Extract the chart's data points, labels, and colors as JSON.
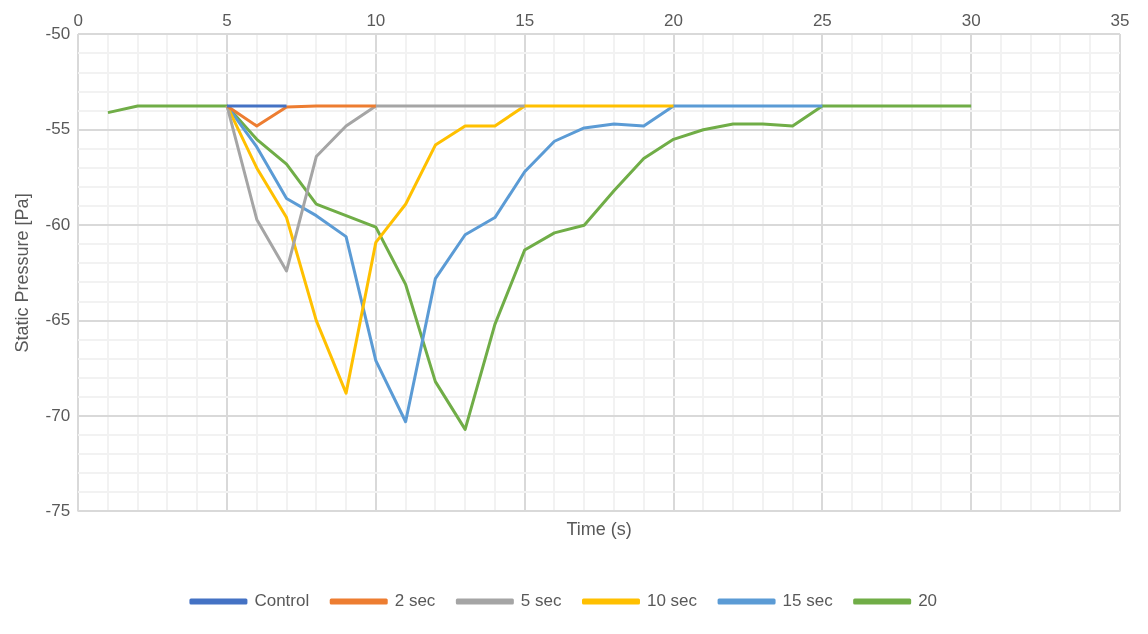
{
  "chart_data": {
    "type": "line",
    "xlabel": "Time (s)",
    "ylabel": "Static Pressure [Pa]",
    "x": [
      1,
      2,
      3,
      4,
      5,
      6,
      7,
      8,
      9,
      10,
      11,
      12,
      13,
      14,
      15,
      16,
      17,
      18,
      19,
      20,
      21,
      22,
      23,
      24,
      25,
      26,
      27,
      28,
      29,
      30
    ],
    "series": [
      {
        "name": "Control",
        "color": "#4472c4",
        "values": [
          null,
          null,
          null,
          null,
          -53.75,
          -53.75,
          -53.75,
          null,
          null,
          null,
          null,
          null,
          null,
          null,
          null,
          null,
          null,
          null,
          null,
          null,
          null,
          null,
          null,
          null,
          null,
          null,
          null,
          null,
          null,
          null
        ]
      },
      {
        "name": "2 sec",
        "color": "#ed7d31",
        "values": [
          null,
          null,
          null,
          null,
          -53.75,
          -54.8,
          -53.8,
          -53.75,
          -53.75,
          -53.75,
          null,
          null,
          null,
          null,
          null,
          null,
          null,
          null,
          null,
          null,
          null,
          null,
          null,
          null,
          null,
          null,
          null,
          null,
          null,
          null
        ]
      },
      {
        "name": "5 sec",
        "color": "#a5a5a5",
        "values": [
          null,
          null,
          null,
          null,
          -53.75,
          -59.7,
          -62.4,
          -56.4,
          -54.8,
          -53.75,
          -53.75,
          -53.75,
          -53.75,
          -53.75,
          -53.75,
          null,
          null,
          null,
          null,
          null,
          null,
          null,
          null,
          null,
          null,
          null,
          null,
          null,
          null,
          null
        ]
      },
      {
        "name": "10 sec",
        "color": "#ffc000",
        "values": [
          null,
          null,
          null,
          null,
          -53.75,
          -57.0,
          -59.6,
          -65.0,
          -68.8,
          -60.9,
          -58.9,
          -55.8,
          -54.8,
          -54.8,
          -53.75,
          -53.75,
          -53.75,
          -53.75,
          -53.75,
          -53.75,
          null,
          null,
          null,
          null,
          null,
          null,
          null,
          null,
          null,
          null
        ]
      },
      {
        "name": "15 sec",
        "color": "#5b9bd5",
        "values": [
          null,
          null,
          null,
          null,
          -53.75,
          -55.9,
          -58.6,
          -59.5,
          -60.6,
          -67.1,
          -70.3,
          -62.8,
          -60.5,
          -59.6,
          -57.2,
          -55.6,
          -54.9,
          -54.7,
          -54.8,
          -53.75,
          -53.75,
          -53.75,
          -53.75,
          -53.75,
          -53.75,
          null,
          null,
          null,
          null,
          null
        ]
      },
      {
        "name": "20",
        "color": "#70ad47",
        "values": [
          -54.1,
          -53.75,
          -53.75,
          -53.75,
          -53.75,
          -55.5,
          -56.8,
          -58.9,
          -59.5,
          -60.1,
          -63.1,
          -68.2,
          -70.7,
          -65.2,
          -61.3,
          -60.4,
          -60.0,
          -58.2,
          -56.5,
          -55.5,
          -55.0,
          -54.7,
          -54.7,
          -54.8,
          -53.75,
          -53.75,
          -53.75,
          -53.75,
          -53.75,
          -53.75
        ]
      }
    ],
    "xlim": [
      0,
      35
    ],
    "xticks": [
      0,
      {
        "value": 1,
        "label": null
      },
      {
        "value": 2,
        "label": null
      },
      {
        "value": 3,
        "label": null
      },
      {
        "value": 4,
        "label": null
      },
      5,
      {
        "value": 6,
        "label": null
      },
      {
        "value": 7,
        "label": null
      },
      {
        "value": 8,
        "label": null
      },
      {
        "value": 9,
        "label": null
      },
      10,
      {
        "value": 11,
        "label": null
      },
      {
        "value": 12,
        "label": null
      },
      {
        "value": 13,
        "label": null
      },
      {
        "value": 14,
        "label": null
      },
      15,
      {
        "value": 16,
        "label": null
      },
      {
        "value": 17,
        "label": null
      },
      {
        "value": 18,
        "label": null
      },
      {
        "value": 19,
        "label": null
      },
      20,
      {
        "value": 21,
        "label": null
      },
      {
        "value": 22,
        "label": null
      },
      {
        "value": 23,
        "label": null
      },
      {
        "value": 24,
        "label": null
      },
      25,
      {
        "value": 26,
        "label": null
      },
      {
        "value": 27,
        "label": null
      },
      {
        "value": 28,
        "label": null
      },
      {
        "value": 29,
        "label": null
      },
      30,
      {
        "value": 31,
        "label": null
      },
      {
        "value": 32,
        "label": null
      },
      {
        "value": 33,
        "label": null
      },
      {
        "value": 34,
        "label": null
      },
      35
    ],
    "ylim": [
      -75,
      -50
    ],
    "yticks": [
      -75,
      {
        "value": -74,
        "label": null
      },
      {
        "value": -73,
        "label": null
      },
      {
        "value": -72,
        "label": null
      },
      {
        "value": -71,
        "label": null
      },
      -70,
      {
        "value": -69,
        "label": null
      },
      {
        "value": -68,
        "label": null
      },
      {
        "value": -67,
        "label": null
      },
      {
        "value": -66,
        "label": null
      },
      -65,
      {
        "value": -64,
        "label": null
      },
      {
        "value": -63,
        "label": null
      },
      {
        "value": -62,
        "label": null
      },
      {
        "value": -61,
        "label": null
      },
      -60,
      {
        "value": -59,
        "label": null
      },
      {
        "value": -58,
        "label": null
      },
      {
        "value": -57,
        "label": null
      },
      {
        "value": -56,
        "label": null
      },
      -55,
      {
        "value": -54,
        "label": null
      },
      {
        "value": -53,
        "label": null
      },
      {
        "value": -52,
        "label": null
      },
      {
        "value": -51,
        "label": null
      },
      -50
    ],
    "grid": true,
    "legend": "bottom",
    "marker": "none",
    "line_style": "solid"
  }
}
